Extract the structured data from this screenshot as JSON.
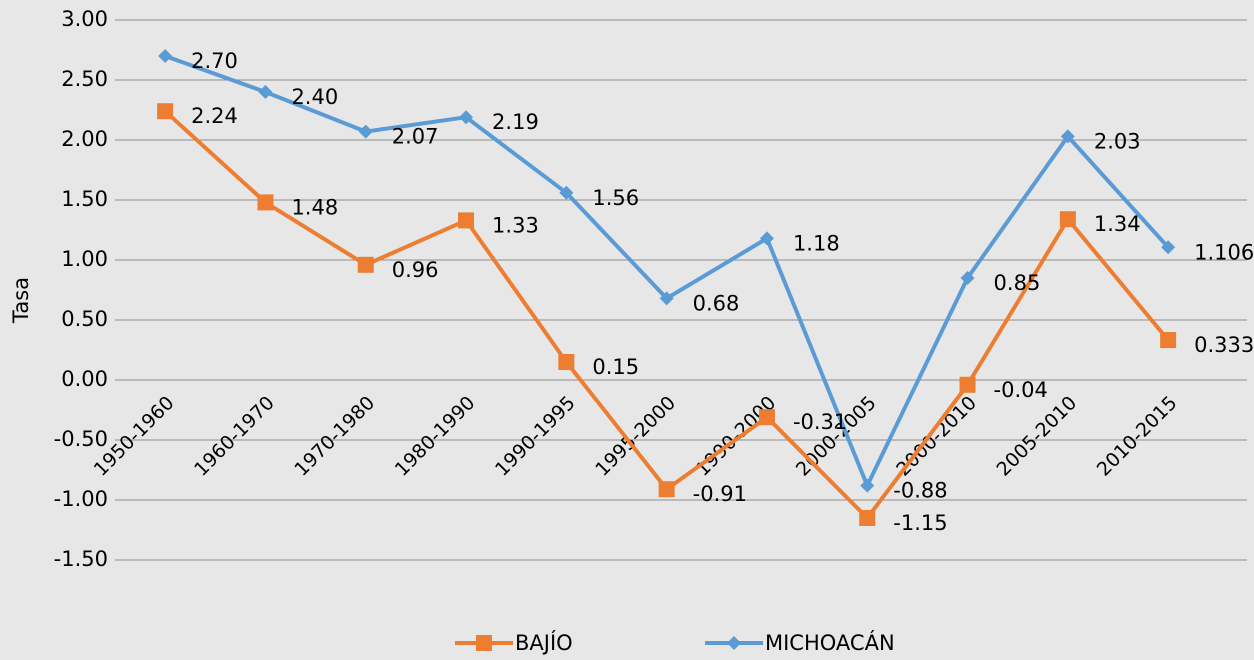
{
  "chart_data": {
    "type": "line",
    "y_label": "Tasa",
    "categories": [
      "1950-1960",
      "1960-1970",
      "1970-1980",
      "1980-1990",
      "1990-1995",
      "1995-2000",
      "1990-2000",
      "2000-2005",
      "2000-2010",
      "2005-2010",
      "2010-2015"
    ],
    "series": [
      {
        "name": "BAJÍO",
        "color": "#ed7d31",
        "marker": "square",
        "values": [
          2.24,
          1.48,
          0.96,
          1.33,
          0.15,
          -0.91,
          -0.31,
          -1.15,
          -0.04,
          1.34,
          0.333
        ],
        "value_labels": [
          "2.24",
          "1.48",
          "0.96",
          "1.33",
          "0.15",
          "-0.91",
          "-0.31",
          "-1.15",
          "-0.04",
          "1.34",
          "0.333"
        ]
      },
      {
        "name": "MICHOACÁN",
        "color": "#5b9bd5",
        "marker": "diamond",
        "values": [
          2.7,
          2.4,
          2.07,
          2.19,
          1.56,
          0.68,
          1.18,
          -0.88,
          0.85,
          2.03,
          1.106
        ],
        "value_labels": [
          "2.70",
          "2.40",
          "2.07",
          "2.19",
          "1.56",
          "0.68",
          "1.18",
          "-0.88",
          "0.85",
          "2.03",
          "1.106"
        ]
      }
    ],
    "ylim": [
      -1.5,
      3
    ],
    "yticks": [
      {
        "value": -1.5,
        "label": "-1.50"
      },
      {
        "value": -1,
        "label": "-1.00"
      },
      {
        "value": -0.5,
        "label": "-0.50"
      },
      {
        "value": 0,
        "label": "0.00"
      },
      {
        "value": 0.5,
        "label": "0.50"
      },
      {
        "value": 1,
        "label": "1.00"
      },
      {
        "value": 1.5,
        "label": "1.50"
      },
      {
        "value": 2,
        "label": "2.00"
      },
      {
        "value": 2.5,
        "label": "2.50"
      },
      {
        "value": 3,
        "label": "3.00"
      }
    ],
    "grid": true,
    "legend": "bottom"
  }
}
